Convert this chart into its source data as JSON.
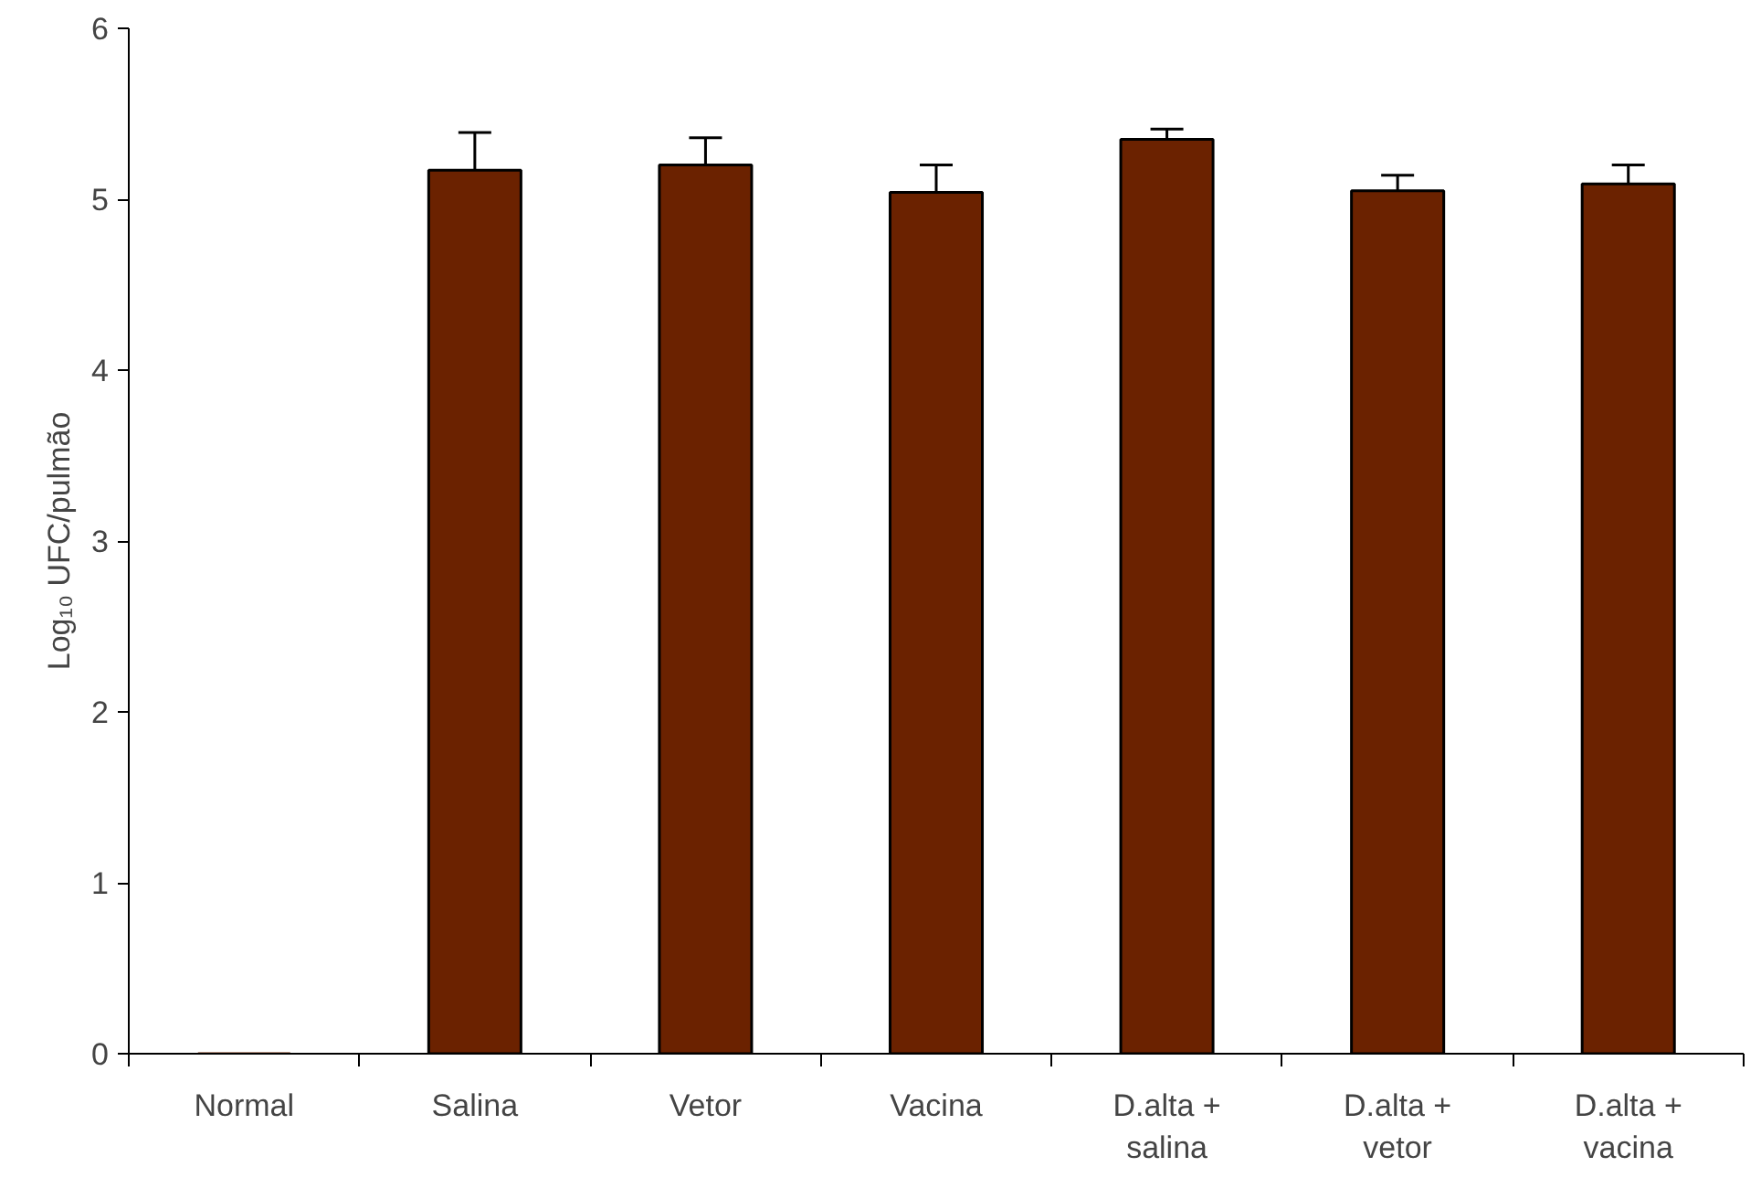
{
  "chart_data": {
    "type": "bar",
    "ylabel": "Log₁₀ UFC/pulmão",
    "categories": [
      "Normal",
      "Salina",
      "Vetor",
      "Vacina",
      "D.alta +\nsalina",
      "D.alta +\nvetor",
      "D.alta +\nvacina"
    ],
    "values": [
      0,
      5.17,
      5.2,
      5.04,
      5.35,
      5.05,
      5.09
    ],
    "errors": [
      null,
      [
        5.17,
        5.39
      ],
      [
        5.2,
        5.36
      ],
      [
        5.04,
        5.2
      ],
      [
        5.35,
        5.41
      ],
      [
        5.05,
        5.14
      ],
      [
        5.09,
        5.2
      ]
    ],
    "color": "#6b2200",
    "ylim": [
      0,
      6
    ],
    "yticks": [
      0,
      1,
      2,
      3,
      4,
      5,
      6
    ],
    "grid": false
  }
}
